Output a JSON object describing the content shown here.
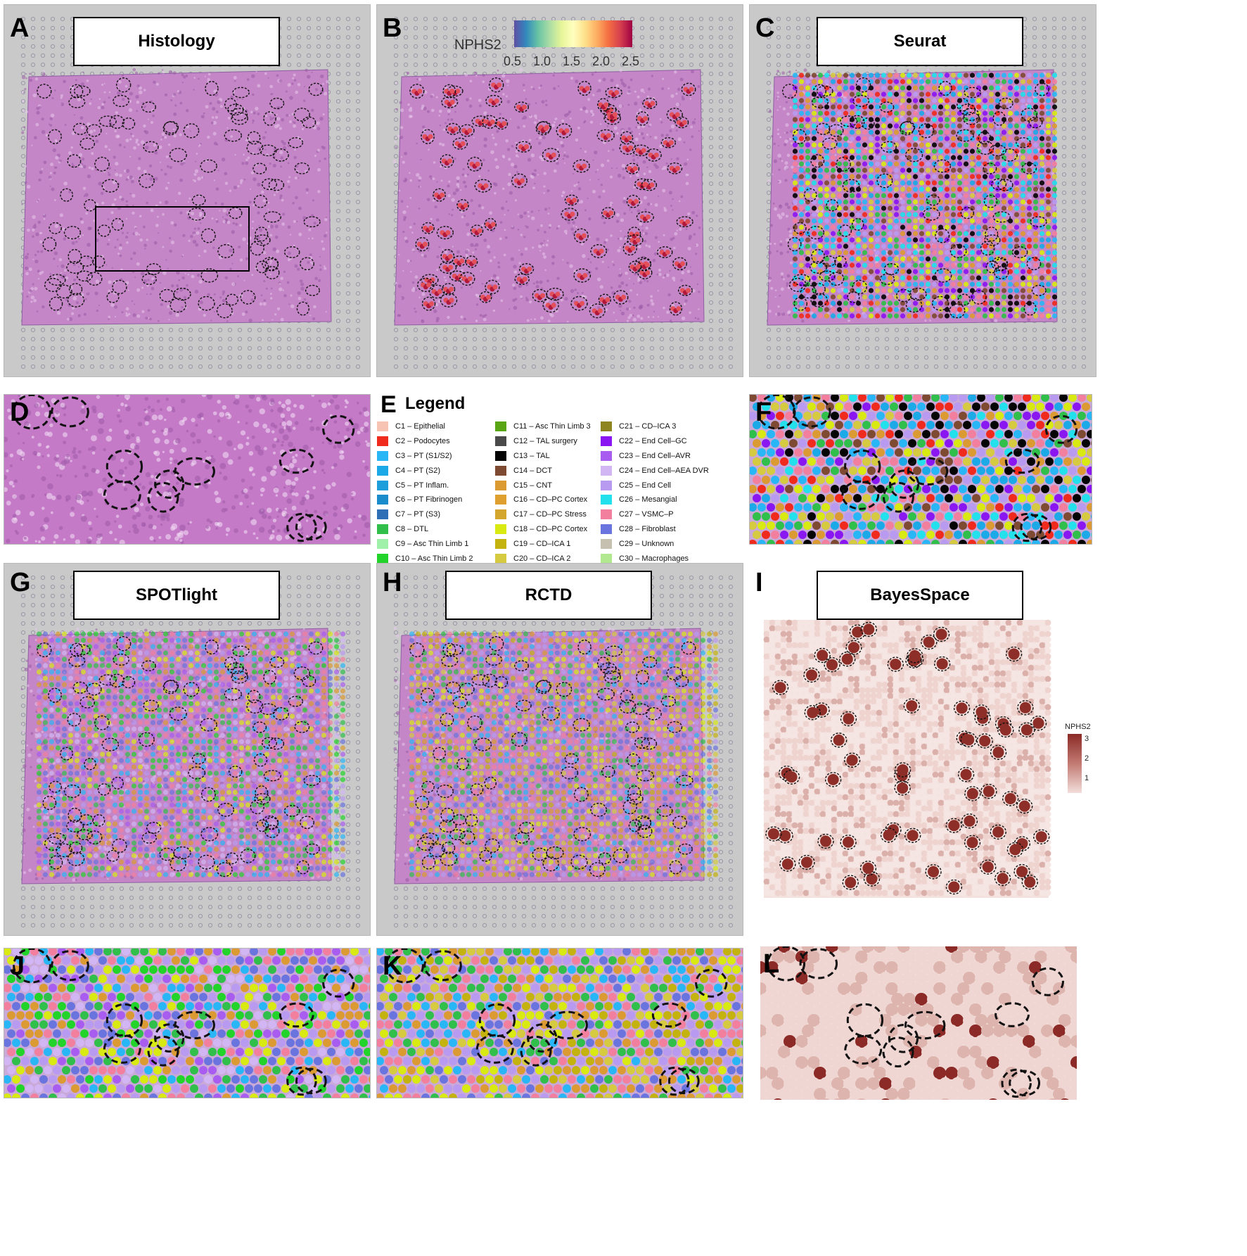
{
  "panels": {
    "A": {
      "letter": "A",
      "title": "Histology"
    },
    "B": {
      "letter": "B"
    },
    "C": {
      "letter": "C",
      "title": "Seurat"
    },
    "D": {
      "letter": "D"
    },
    "E": {
      "letter": "E",
      "legend_title": "Legend"
    },
    "F": {
      "letter": "F"
    },
    "G": {
      "letter": "G",
      "title": "SPOTlight"
    },
    "H": {
      "letter": "H",
      "title": "RCTD"
    },
    "I": {
      "letter": "I",
      "title": "BayesSpace"
    },
    "J": {
      "letter": "J"
    },
    "K": {
      "letter": "K"
    },
    "L": {
      "letter": "L"
    }
  },
  "colorbar_b": {
    "label": "NPHS2",
    "ticks": [
      "0.5",
      "1.0",
      "1.5",
      "2.0",
      "2.5"
    ]
  },
  "colorbar_i": {
    "label": "NPHS2",
    "ticks": [
      "3",
      "2",
      "1"
    ]
  },
  "legend": [
    {
      "label": "C1 – Epithelial",
      "color": "#f7c4b4"
    },
    {
      "label": "C2 – Podocytes",
      "color": "#f02a1c"
    },
    {
      "label": "C3 – PT (S1/S2)",
      "color": "#29b6f6"
    },
    {
      "label": "C4 – PT (S2)",
      "color": "#1ba9e8"
    },
    {
      "label": "C5 – PT Inflam.",
      "color": "#1e9fdc"
    },
    {
      "label": "C6 – PT Fibrinogen",
      "color": "#1a8ccb"
    },
    {
      "label": "C7 – PT (S3)",
      "color": "#2f6fb6"
    },
    {
      "label": "C8 – DTL",
      "color": "#2fbf4a"
    },
    {
      "label": "C9 – Asc Thin Limb 1",
      "color": "#9ff0a8"
    },
    {
      "label": "C10 – Asc Thin Limb 2",
      "color": "#22d42a"
    },
    {
      "label": "C11 – Asc Thin Limb 3",
      "color": "#5aa514"
    },
    {
      "label": "C12 – TAL surgery",
      "color": "#4a4a4a"
    },
    {
      "label": "C13 – TAL",
      "color": "#050505"
    },
    {
      "label": "C14 – DCT",
      "color": "#7e4a32"
    },
    {
      "label": "C15 – CNT",
      "color": "#dc9a32"
    },
    {
      "label": "C16 – CD–PC Cortex",
      "color": "#e0a030"
    },
    {
      "label": "C17 – CD–PC Stress",
      "color": "#d4a62e"
    },
    {
      "label": "C18 – CD–PC Cortex",
      "color": "#d8ea12"
    },
    {
      "label": "C19 – CD–ICA 1",
      "color": "#c4b20e"
    },
    {
      "label": "C20 – CD–ICA 2",
      "color": "#d6ca40"
    },
    {
      "label": "C21 – CD–ICA 3",
      "color": "#8e8420"
    },
    {
      "label": "C22 – End Cell–GC",
      "color": "#8a16f2"
    },
    {
      "label": "C23 – End Cell–AVR",
      "color": "#a95cf0"
    },
    {
      "label": "C24 – End Cell–AEA DVR",
      "color": "#d2b6f4"
    },
    {
      "label": "C25 – End Cell",
      "color": "#b89af0"
    },
    {
      "label": "C26 – Mesangial",
      "color": "#22e0ec"
    },
    {
      "label": "C27 – VSMC–P",
      "color": "#f27f9e"
    },
    {
      "label": "C28 – Fibroblast",
      "color": "#6a74de"
    },
    {
      "label": "C29 – Unknown",
      "color": "#c6c0b0"
    },
    {
      "label": "C30 – Macrophages",
      "color": "#b2e890"
    }
  ]
}
